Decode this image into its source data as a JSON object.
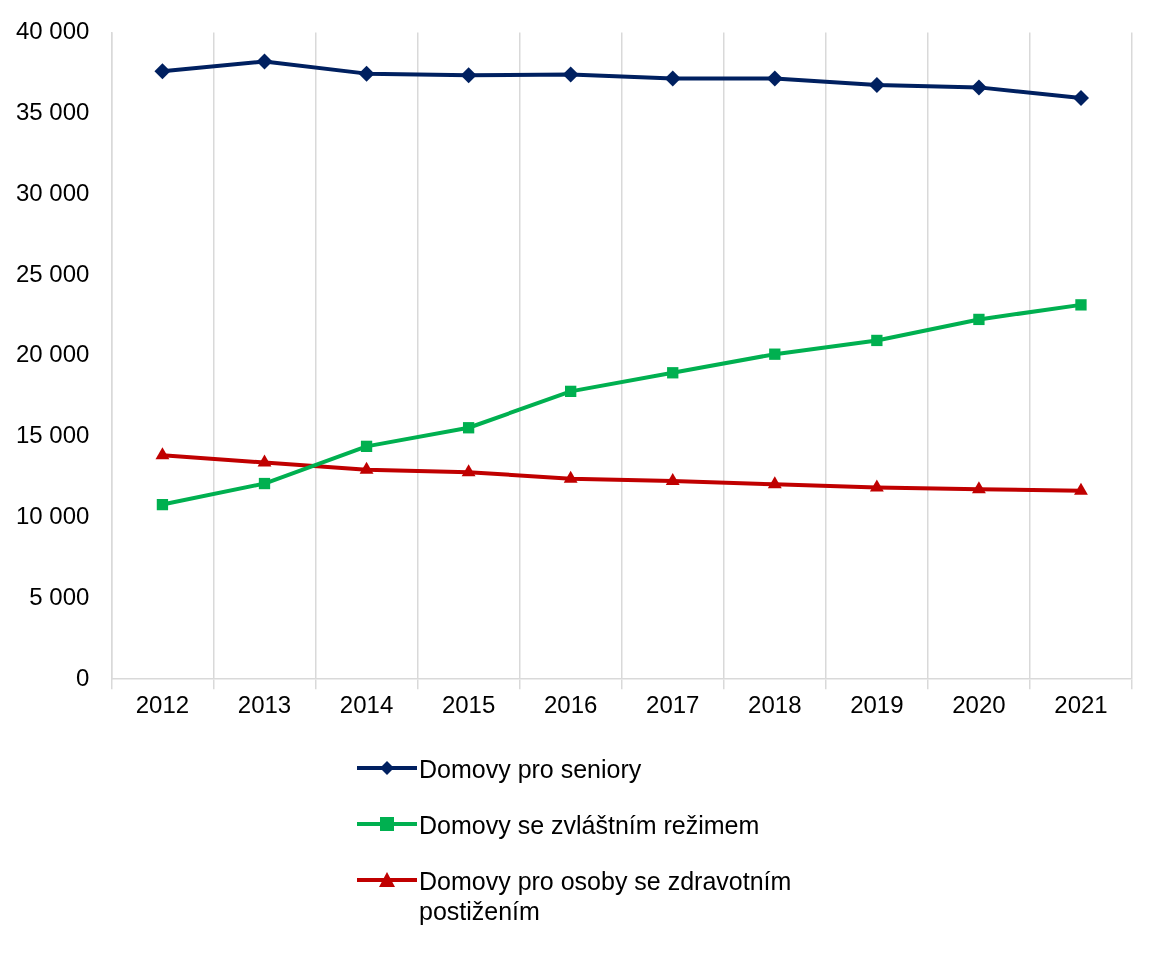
{
  "chart_data": {
    "type": "line",
    "categories": [
      "2012",
      "2013",
      "2014",
      "2015",
      "2016",
      "2017",
      "2018",
      "2019",
      "2020",
      "2021"
    ],
    "series": [
      {
        "name": "Domovy pro seniory",
        "color": "#002060",
        "marker": "diamond",
        "values": [
          37600,
          38200,
          37450,
          37350,
          37400,
          37150,
          37150,
          36750,
          36600,
          35950
        ]
      },
      {
        "name": "Domovy se zvláštním režimem",
        "color": "#00b050",
        "marker": "square",
        "values": [
          10800,
          12100,
          14400,
          15550,
          17800,
          18950,
          20100,
          20950,
          22250,
          23150
        ]
      },
      {
        "name": "Domovy pro osoby se zdravotním postižením",
        "color": "#c00000",
        "marker": "triangle",
        "values": [
          13850,
          13400,
          12950,
          12800,
          12400,
          12250,
          12050,
          11850,
          11750,
          11650
        ]
      }
    ],
    "ylim": [
      0,
      40000
    ],
    "yticks": [
      0,
      {
        "value": 5000,
        "label": "5 000"
      },
      {
        "value": 10000,
        "label": "10 000"
      },
      {
        "value": 15000,
        "label": "15 000"
      },
      {
        "value": 20000,
        "label": "20 000"
      },
      {
        "value": 25000,
        "label": "25 000"
      },
      {
        "value": 30000,
        "label": "30 000"
      },
      {
        "value": 35000,
        "label": "35 000"
      },
      {
        "value": 40000,
        "label": "40 000"
      }
    ],
    "grid": "x",
    "legend": "bottom",
    "line_style": "solid"
  }
}
